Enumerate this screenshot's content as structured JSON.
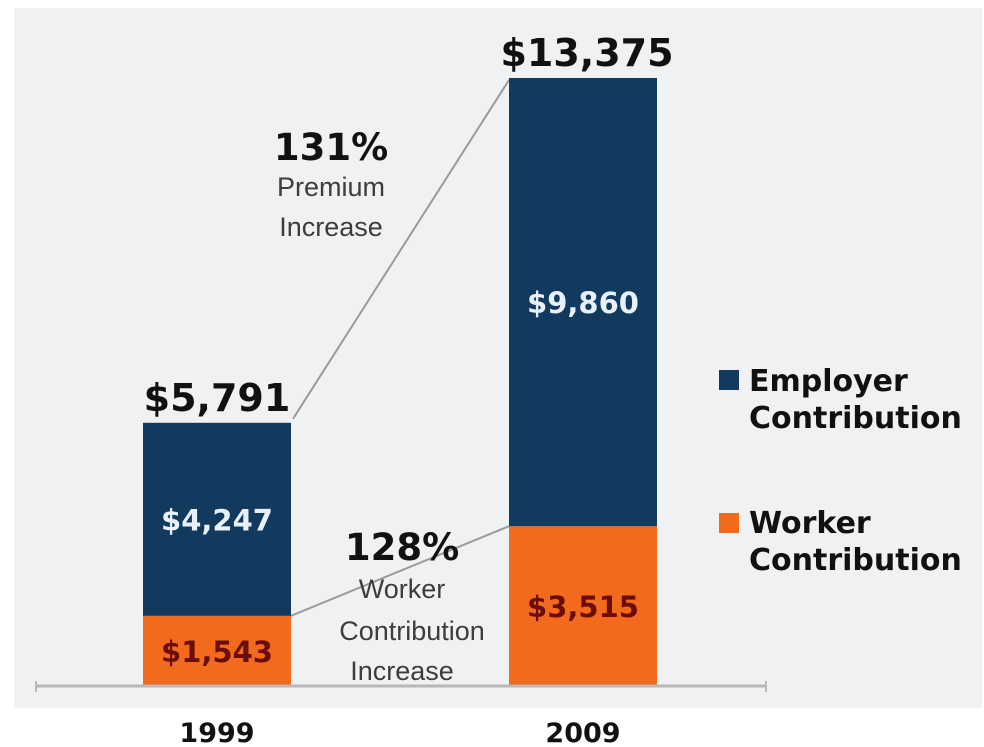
{
  "chart_data": {
    "type": "bar",
    "stacked": true,
    "categories": [
      "1999",
      "2009"
    ],
    "series": [
      {
        "name": "Worker Contribution",
        "values": [
          1543,
          3515
        ],
        "labels": [
          "$1,543",
          "$3,515"
        ],
        "color": "#f26a1b",
        "label_color": "#6b0d0d"
      },
      {
        "name": "Employer Contribution",
        "values": [
          4247,
          9860
        ],
        "labels": [
          "$4,247",
          "$9,860"
        ],
        "color": "#123a5e",
        "label_color": "#e8f1fb"
      }
    ],
    "totals": [
      5791,
      13375
    ],
    "total_labels": [
      "$5,791",
      "$13,375"
    ],
    "annotations": [
      {
        "value": "131%",
        "text": [
          "Premium",
          "Increase"
        ]
      },
      {
        "value": "128%",
        "text": [
          "Worker",
          "Contribution",
          "Increase"
        ]
      }
    ],
    "legend_position": "right",
    "grid": false,
    "ylim": [
      0,
      13375
    ],
    "colors": {
      "background": "#eff1f3",
      "employer": "#123a5e",
      "worker": "#f26a1b",
      "text": "#111111",
      "annotation_text": "#3d3d3d",
      "trend_line": "#9a9a9a"
    }
  }
}
